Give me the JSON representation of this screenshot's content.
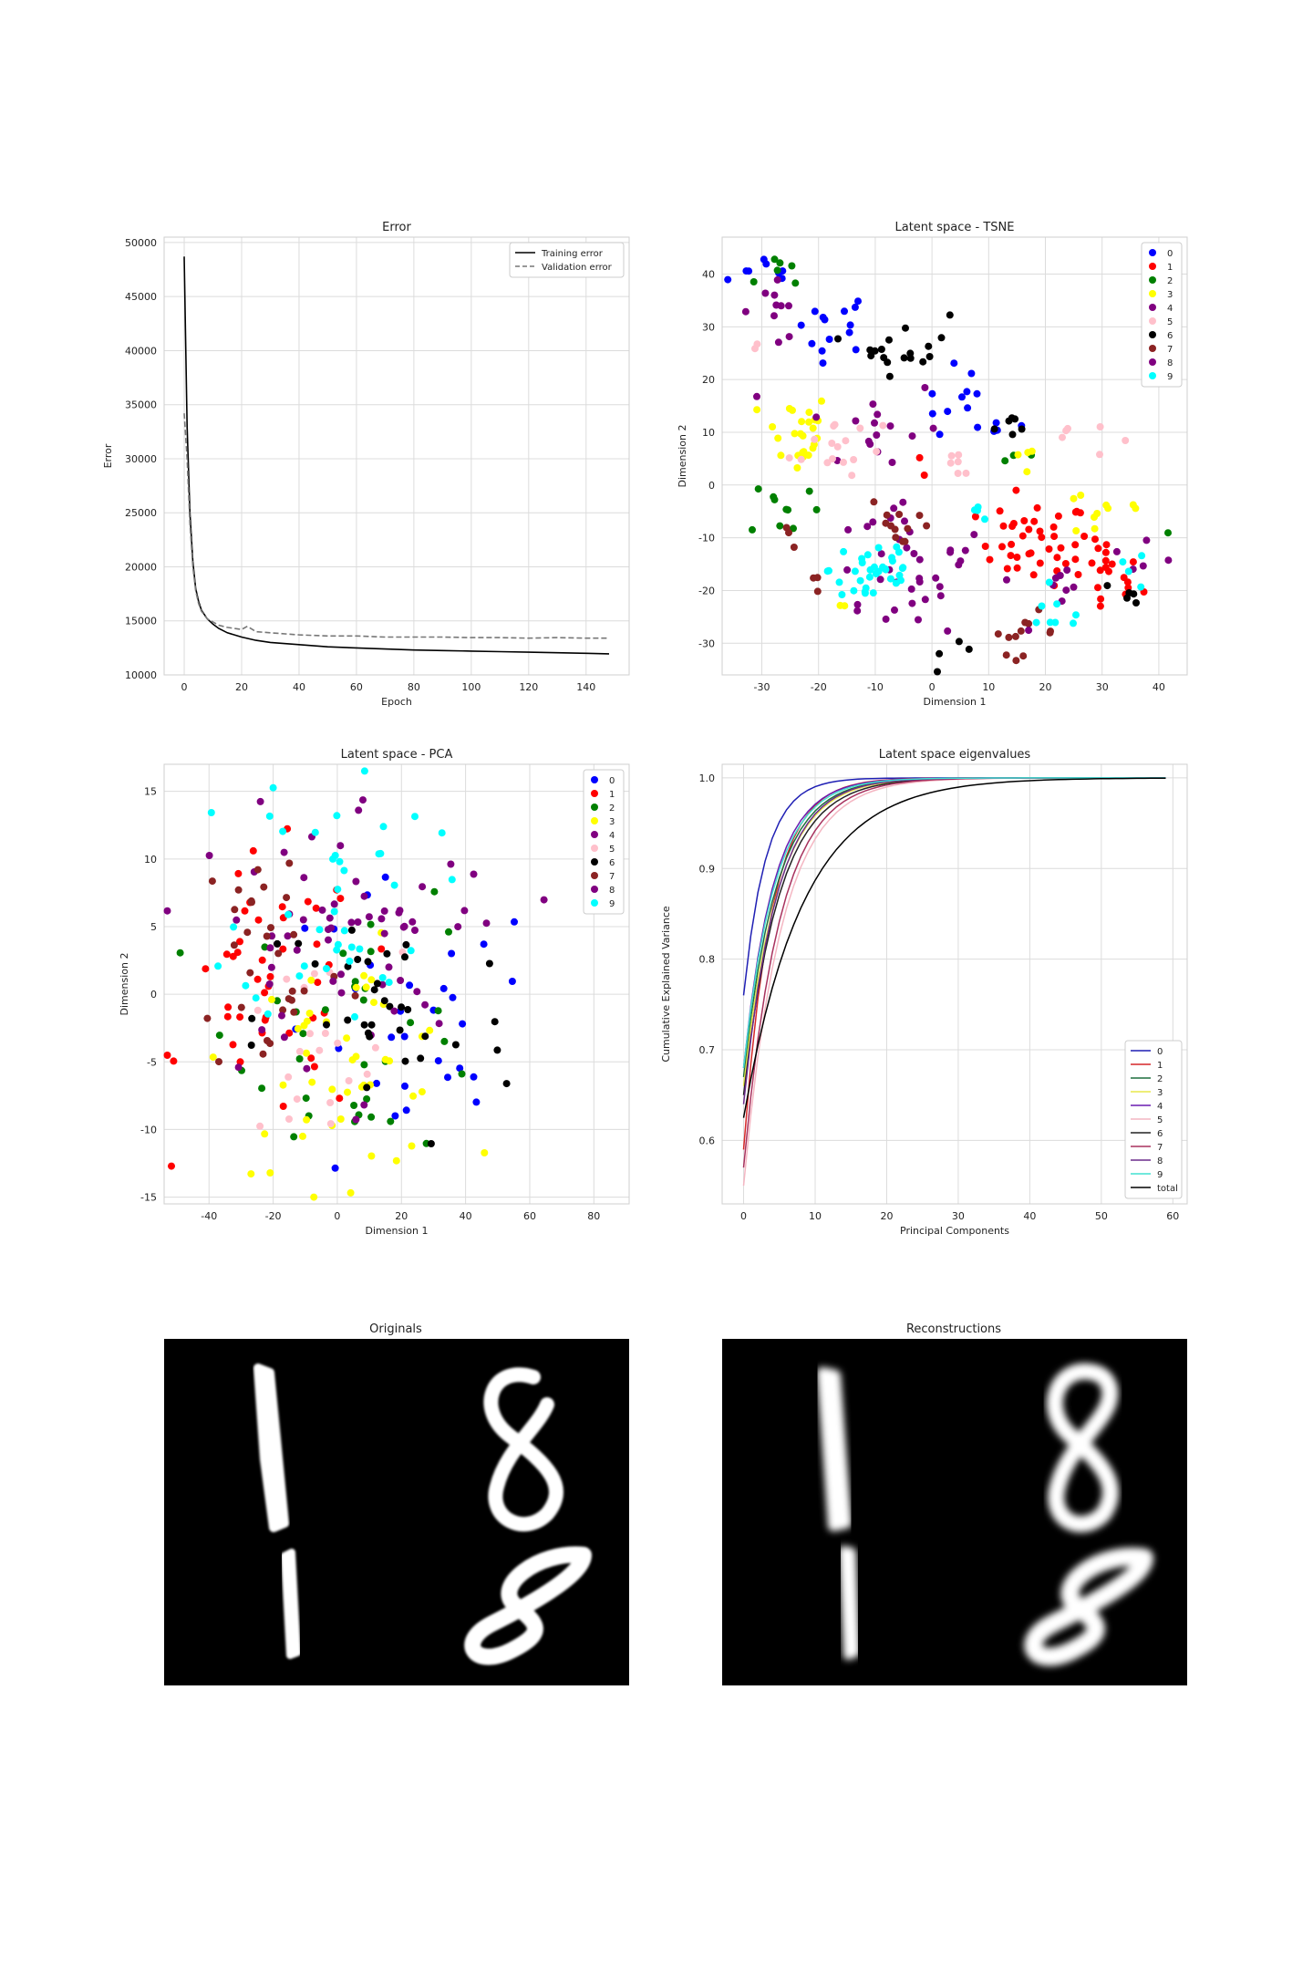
{
  "chart_data": [
    {
      "type": "line",
      "title": "Error",
      "xlabel": "Epoch",
      "ylabel": "Error",
      "xlim": [
        -7,
        155
      ],
      "ylim": [
        10000,
        50500
      ],
      "x_ticks": [
        0,
        20,
        40,
        60,
        80,
        100,
        120,
        140
      ],
      "y_ticks": [
        10000,
        15000,
        20000,
        25000,
        30000,
        35000,
        40000,
        45000,
        50000
      ],
      "grid": true,
      "legend": "top-right",
      "series": [
        {
          "name": "Training error",
          "style": "solid",
          "color": "#000000",
          "x": [
            0,
            1,
            2,
            3,
            4,
            5,
            6,
            8,
            10,
            12,
            15,
            20,
            25,
            30,
            40,
            50,
            60,
            70,
            80,
            90,
            100,
            110,
            120,
            130,
            140,
            148
          ],
          "y": [
            48700,
            33000,
            25000,
            20500,
            18000,
            16800,
            16000,
            15200,
            14700,
            14300,
            13900,
            13500,
            13200,
            13000,
            12800,
            12600,
            12500,
            12400,
            12300,
            12250,
            12200,
            12150,
            12100,
            12050,
            12000,
            11950
          ]
        },
        {
          "name": "Validation error",
          "style": "dashed",
          "color": "#777777",
          "x": [
            0,
            1,
            2,
            3,
            4,
            5,
            6,
            8,
            10,
            12,
            15,
            20,
            22,
            25,
            30,
            40,
            50,
            60,
            70,
            80,
            90,
            100,
            110,
            120,
            130,
            140,
            148
          ],
          "y": [
            34200,
            30000,
            24000,
            20000,
            17800,
            16600,
            15900,
            15200,
            14900,
            14600,
            14400,
            14200,
            14500,
            14000,
            13900,
            13700,
            13600,
            13600,
            13500,
            13500,
            13500,
            13450,
            13450,
            13400,
            13450,
            13400,
            13400
          ]
        }
      ]
    },
    {
      "type": "scatter",
      "title": "Latent space - TSNE",
      "xlabel": "Dimension 1",
      "ylabel": "Dimension 2",
      "xlim": [
        -37,
        45
      ],
      "ylim": [
        -36,
        47
      ],
      "x_ticks": [
        -30,
        -20,
        -10,
        0,
        10,
        20,
        30,
        40
      ],
      "y_ticks": [
        -30,
        -20,
        -10,
        0,
        10,
        20,
        30,
        40
      ],
      "grid": true,
      "legend": "top-right",
      "series": [
        {
          "name": "0",
          "color": "#0000ff",
          "clusters": [
            [
              -28,
              40,
              4,
              2,
              8
            ],
            [
              -18,
              31,
              4,
              3,
              14
            ],
            [
              5,
              15,
              3,
              4,
              10
            ],
            [
              14,
              11,
              3,
              1,
              5
            ]
          ]
        },
        {
          "name": "1",
          "color": "#ff0000",
          "clusters": [
            [
              18,
              -11,
              5,
              4,
              40
            ],
            [
              31,
              -18,
              3,
              4,
              20
            ],
            [
              -1,
              3,
              1,
              1,
              2
            ]
          ]
        },
        {
          "name": "2",
          "color": "#008000",
          "clusters": [
            [
              -28,
              40,
              3,
              2,
              6
            ],
            [
              -26,
              -4,
              3,
              3,
              10
            ],
            [
              16,
              6,
              2,
              1,
              3
            ],
            [
              41,
              -9,
              1,
              1,
              1
            ]
          ]
        },
        {
          "name": "3",
          "color": "#ffff00",
          "clusters": [
            [
              -24,
              10,
              3,
              4,
              25
            ],
            [
              30,
              -5,
              5,
              3,
              10
            ],
            [
              17,
              5,
              2,
              2,
              4
            ],
            [
              -14,
              -22,
              1,
              1,
              2
            ]
          ]
        },
        {
          "name": "4",
          "color": "#800080",
          "clusters": [
            [
              -10,
              11,
              6,
              5,
              16
            ],
            [
              -8,
              -10,
              5,
              6,
              18
            ],
            [
              5,
              -14,
              3,
              2,
              6
            ],
            [
              38,
              -15,
              3,
              2,
              5
            ]
          ]
        },
        {
          "name": "5",
          "color": "#ffc0cb",
          "clusters": [
            [
              -17,
              8,
              4,
              4,
              16
            ],
            [
              23,
              9,
              4,
              2,
              6
            ],
            [
              5,
              4,
              2,
              2,
              6
            ],
            [
              -31,
              25,
              1,
              1,
              2
            ]
          ]
        },
        {
          "name": "6",
          "color": "#000000",
          "clusters": [
            [
              -5,
              27,
              4,
              3,
              18
            ],
            [
              15,
              11,
              2,
              1,
              6
            ],
            [
              3,
              -32,
              2,
              1,
              4
            ],
            [
              34,
              -22,
              2,
              2,
              5
            ]
          ]
        },
        {
          "name": "7",
          "color": "#8b2323",
          "clusters": [
            [
              -5,
              -7,
              3,
              3,
              12
            ],
            [
              16,
              -28,
              3,
              2,
              12
            ],
            [
              -20,
              -19,
              1,
              1,
              3
            ],
            [
              -25,
              -10,
              1,
              1,
              3
            ]
          ]
        },
        {
          "name": "8",
          "color": "#800080",
          "clusters": [
            [
              -28,
              34,
              3,
              4,
              10
            ],
            [
              -4,
              -20,
              3,
              3,
              14
            ],
            [
              23,
              -22,
              3,
              3,
              8
            ]
          ]
        },
        {
          "name": "9",
          "color": "#00ffff",
          "clusters": [
            [
              -10,
              -16,
              4,
              4,
              34
            ],
            [
              22,
              -25,
              3,
              2,
              8
            ],
            [
              9,
              -5,
              2,
              1,
              4
            ],
            [
              35,
              -16,
              2,
              2,
              4
            ]
          ]
        }
      ]
    },
    {
      "type": "scatter",
      "title": "Latent space - PCA",
      "xlabel": "Dimension 1",
      "ylabel": "Dimension 2",
      "xlim": [
        -54,
        91
      ],
      "ylim": [
        -15.5,
        17
      ],
      "x_ticks": [
        -40,
        -20,
        0,
        20,
        40,
        60,
        80
      ],
      "y_ticks": [
        -15,
        -10,
        -5,
        0,
        5,
        10,
        15
      ],
      "grid": true,
      "legend": "top-right",
      "series": [
        {
          "name": "0",
          "color": "#0000ff",
          "clusters": [
            [
              20,
              -4,
              22,
              6,
              30
            ]
          ]
        },
        {
          "name": "1",
          "color": "#ff0000",
          "clusters": [
            [
              -20,
              0,
              14,
              5,
              45
            ]
          ]
        },
        {
          "name": "2",
          "color": "#008000",
          "clusters": [
            [
              8,
              -2,
              20,
              5,
              35
            ]
          ]
        },
        {
          "name": "3",
          "color": "#ffff00",
          "clusters": [
            [
              3,
              -5,
              18,
              4,
              45
            ]
          ]
        },
        {
          "name": "4",
          "color": "#800080",
          "clusters": [
            [
              -5,
              3,
              22,
              5,
              35
            ]
          ]
        },
        {
          "name": "5",
          "color": "#ffc0cb",
          "clusters": [
            [
              -10,
              -5,
              15,
              4,
              20
            ]
          ]
        },
        {
          "name": "6",
          "color": "#000000",
          "clusters": [
            [
              15,
              -2,
              20,
              5,
              35
            ]
          ]
        },
        {
          "name": "7",
          "color": "#8b2323",
          "clusters": [
            [
              -20,
              3,
              12,
              5,
              30
            ]
          ]
        },
        {
          "name": "8",
          "color": "#800080",
          "clusters": [
            [
              10,
              5,
              22,
              5,
              30
            ]
          ]
        },
        {
          "name": "9",
          "color": "#00ffff",
          "clusters": [
            [
              0,
              8,
              15,
              5,
              40
            ]
          ]
        }
      ]
    },
    {
      "type": "line",
      "title": "Latent space eigenvalues",
      "xlabel": "Principal Components",
      "ylabel": "Cumulative Explained Variance",
      "xlim": [
        -3,
        62
      ],
      "ylim": [
        0.53,
        1.015
      ],
      "x_ticks": [
        0,
        10,
        20,
        30,
        40,
        50,
        60
      ],
      "y_ticks": [
        0.6,
        0.7,
        0.8,
        0.9,
        1.0
      ],
      "grid": true,
      "legend": "bottom-right",
      "series": [
        {
          "name": "0",
          "color": "#1f1fb4",
          "start": 0.76,
          "rate": 0.32
        },
        {
          "name": "1",
          "color": "#d62728",
          "start": 0.59,
          "rate": 0.26
        },
        {
          "name": "2",
          "color": "#1f6f3f",
          "start": 0.67,
          "rate": 0.22
        },
        {
          "name": "3",
          "color": "#e8e84a",
          "start": 0.66,
          "rate": 0.21
        },
        {
          "name": "4",
          "color": "#6a1bb0",
          "start": 0.68,
          "rate": 0.24
        },
        {
          "name": "5",
          "color": "#f4b6c2",
          "start": 0.55,
          "rate": 0.19
        },
        {
          "name": "6",
          "color": "#222222",
          "start": 0.65,
          "rate": 0.2
        },
        {
          "name": "7",
          "color": "#a8325e",
          "start": 0.57,
          "rate": 0.2
        },
        {
          "name": "8",
          "color": "#6b2b8c",
          "start": 0.64,
          "rate": 0.22
        },
        {
          "name": "9",
          "color": "#40e0d0",
          "start": 0.68,
          "rate": 0.23
        },
        {
          "name": "total",
          "color": "#000000",
          "start": 0.625,
          "rate": 0.12
        }
      ]
    }
  ],
  "images": {
    "originals_title": "Originals",
    "reconstructions_title": "Reconstructions"
  }
}
